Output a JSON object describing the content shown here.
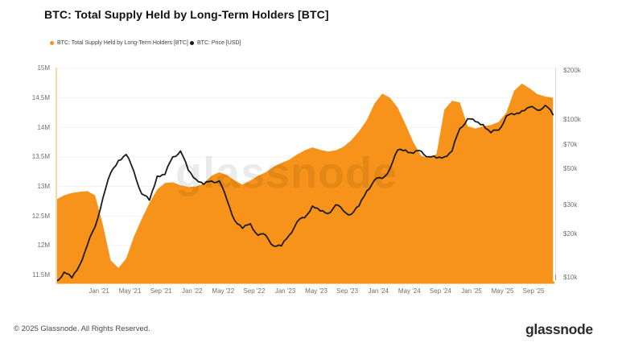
{
  "header": {
    "title": "BTC: Total Supply Held by Long-Term Holders [BTC]"
  },
  "legend": {
    "items": [
      {
        "label": "BTC: Total Supply Held by Long-Term Holders [BTC]",
        "color": "#F7931A"
      },
      {
        "label": "BTC: Price [USD]",
        "color": "#1b1b1b"
      }
    ]
  },
  "watermark": {
    "text": "glassnode"
  },
  "footer": {
    "copyright": "© 2025 Glassnode. All Rights Reserved.",
    "logo_text": "glassnode"
  },
  "colors": {
    "supply_area": "#F7931A",
    "price_line": "#1b1b1b",
    "left_axis_line": "#f5d9ad",
    "right_axis_line": "#dddddd",
    "baseline": "#F7931A",
    "gridline": "#f3f3f3",
    "axis_text": "#6f6f6f"
  },
  "chart_data": {
    "type": "area+line",
    "title": "BTC: Total Supply Held by Long-Term Holders [BTC]",
    "interval": "monthly (mid-month samples, Jul 2020 - Nov 2025)",
    "months": [
      "Jul 2020",
      "Aug 2020",
      "Sep 2020",
      "Oct 2020",
      "Nov 2020",
      "Dec 2020",
      "Jan 2021",
      "Feb 2021",
      "Mar 2021",
      "Apr 2021",
      "May 2021",
      "Jun 2021",
      "Jul 2021",
      "Aug 2021",
      "Sep 2021",
      "Oct 2021",
      "Nov 2021",
      "Dec 2021",
      "Jan 2022",
      "Feb 2022",
      "Mar 2022",
      "Apr 2022",
      "May 2022",
      "Jun 2022",
      "Jul 2022",
      "Aug 2022",
      "Sep 2022",
      "Oct 2022",
      "Nov 2022",
      "Dec 2022",
      "Jan 2023",
      "Feb 2023",
      "Mar 2023",
      "Apr 2023",
      "May 2023",
      "Jun 2023",
      "Jul 2023",
      "Aug 2023",
      "Sep 2023",
      "Oct 2023",
      "Nov 2023",
      "Dec 2023",
      "Jan 2024",
      "Feb 2024",
      "Mar 2024",
      "Apr 2024",
      "May 2024",
      "Jun 2024",
      "Jul 2024",
      "Aug 2024",
      "Sep 2024",
      "Oct 2024",
      "Nov 2024",
      "Dec 2024",
      "Jan 2025",
      "Feb 2025",
      "Mar 2025",
      "Apr 2025",
      "May 2025",
      "Jun 2025",
      "Jul 2025",
      "Aug 2025",
      "Sep 2025",
      "Oct 2025",
      "Nov 2025"
    ],
    "series": [
      {
        "name": "BTC: Total Supply Held by Long-Term Holders [BTC]",
        "style": "area",
        "axis": "left",
        "unit": "M BTC",
        "color": "#F7931A",
        "values": [
          12.78,
          12.85,
          12.89,
          12.91,
          12.92,
          12.85,
          12.35,
          11.75,
          11.62,
          11.78,
          12.15,
          12.45,
          12.72,
          12.95,
          13.06,
          13.07,
          13.02,
          12.99,
          13.0,
          13.05,
          13.18,
          13.24,
          13.19,
          13.1,
          13.03,
          13.1,
          13.18,
          13.24,
          13.33,
          13.4,
          13.45,
          13.54,
          13.61,
          13.66,
          13.62,
          13.59,
          13.61,
          13.67,
          13.78,
          13.93,
          14.12,
          14.4,
          14.57,
          14.5,
          14.33,
          14.05,
          13.75,
          13.52,
          13.48,
          13.55,
          14.3,
          14.45,
          14.42,
          14.02,
          13.98,
          14.02,
          14.04,
          14.09,
          14.25,
          14.62,
          14.74,
          14.66,
          14.56,
          14.52,
          14.5
        ]
      },
      {
        "name": "BTC: Price [USD]",
        "style": "line",
        "axis": "right",
        "unit": "USD",
        "scale": "log",
        "color": "#1b1b1b",
        "values": [
          10200,
          11600,
          10700,
          12800,
          17000,
          22000,
          33000,
          47000,
          56000,
          61000,
          48000,
          35000,
          32000,
          45000,
          46000,
          59000,
          64000,
          49000,
          43000,
          40000,
          42000,
          42000,
          32000,
          24000,
          21500,
          23000,
          19500,
          19500,
          16800,
          16800,
          19500,
          23500,
          25000,
          29500,
          27500,
          26500,
          30000,
          27500,
          26200,
          29500,
          36500,
          42500,
          43500,
          50000,
          65000,
          65000,
          62000,
          64000,
          59000,
          58000,
          59000,
          64000,
          88000,
          101000,
          97000,
          93000,
          83000,
          86000,
          105000,
          107000,
          113000,
          119000,
          114000,
          122000,
          107000
        ]
      }
    ],
    "left_axis": {
      "unit": "BTC",
      "range_bottom": 11.38,
      "range_top": 15.05,
      "ticks": [
        {
          "label": "15M",
          "value": 15.0
        },
        {
          "label": "14.5M",
          "value": 14.5
        },
        {
          "label": "14M",
          "value": 14.0
        },
        {
          "label": "13.5M",
          "value": 13.5
        },
        {
          "label": "13M",
          "value": 13.0
        },
        {
          "label": "12.5M",
          "value": 12.5
        },
        {
          "label": "12M",
          "value": 12.0
        },
        {
          "label": "11.5M",
          "value": 11.5
        }
      ]
    },
    "right_axis": {
      "unit": "USD",
      "scale": "log",
      "range_bottom": 10000,
      "range_top": 225000,
      "ticks": [
        {
          "label": "$200k",
          "value": 200000
        },
        {
          "label": "$100k",
          "value": 100000
        },
        {
          "label": "$70k",
          "value": 70000
        },
        {
          "label": "$50k",
          "value": 50000
        },
        {
          "label": "$30k",
          "value": 30000
        },
        {
          "label": "$20k",
          "value": 20000
        },
        {
          "label": "$10k",
          "value": 10000
        }
      ]
    },
    "x_axis": {
      "tick_labels": [
        "Jan '21",
        "May '21",
        "Sep '21",
        "Jan '22",
        "May '22",
        "Sep '22",
        "Jan '23",
        "May '23",
        "Sep '23",
        "Jan '24",
        "May '24",
        "Sep '24",
        "Jan '25",
        "May '25",
        "Sep '25"
      ]
    },
    "grid": "horizontal-faint",
    "legend_position": "top-left"
  }
}
